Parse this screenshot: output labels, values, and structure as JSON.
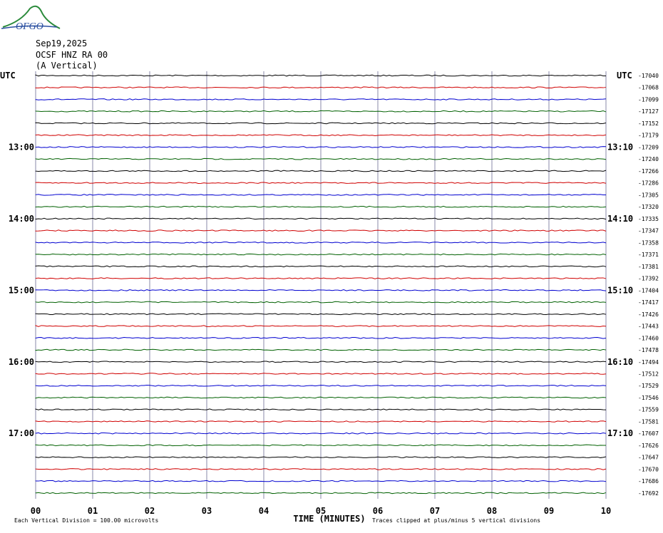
{
  "chart_data": {
    "type": "helicorder",
    "logo": "OFGO",
    "header": [
      "Sep19,2025",
      "OCSF HNZ RA 00",
      "(A Vertical)"
    ],
    "left_axis_label": "UTC",
    "right_axis_label": "UTC",
    "xlabel": "TIME (MINUTES)",
    "xlim": [
      0,
      10
    ],
    "xticks": [
      {
        "value": 0,
        "label": "00"
      },
      {
        "value": 1,
        "label": "01"
      },
      {
        "value": 2,
        "label": "02"
      },
      {
        "value": 3,
        "label": "03"
      },
      {
        "value": 4,
        "label": "04"
      },
      {
        "value": 5,
        "label": "05"
      },
      {
        "value": 6,
        "label": "06"
      },
      {
        "value": 7,
        "label": "07"
      },
      {
        "value": 8,
        "label": "08"
      },
      {
        "value": 9,
        "label": "09"
      },
      {
        "value": 10,
        "label": "10"
      }
    ],
    "colors": [
      "#000000",
      "#d00000",
      "#0000d0",
      "#006000"
    ],
    "left_time_labels": [
      null,
      null,
      null,
      null,
      null,
      null,
      "13:00",
      null,
      null,
      null,
      null,
      null,
      "14:00",
      null,
      null,
      null,
      null,
      null,
      "15:00",
      null,
      null,
      null,
      null,
      null,
      "16:00",
      null,
      null,
      null,
      null,
      null,
      "17:00",
      null,
      null,
      null,
      null,
      null
    ],
    "right_time_labels": [
      null,
      null,
      null,
      null,
      null,
      null,
      "13:10",
      null,
      null,
      null,
      null,
      null,
      "14:10",
      null,
      null,
      null,
      null,
      null,
      "15:10",
      null,
      null,
      null,
      null,
      null,
      "16:10",
      null,
      null,
      null,
      null,
      null,
      "17:10",
      null,
      null,
      null,
      null,
      null
    ],
    "trace_labels": [
      -17040,
      -17068,
      -17099,
      -17127,
      -17152,
      -17179,
      -17209,
      -17240,
      -17266,
      -17286,
      -17305,
      -17320,
      -17335,
      -17347,
      -17358,
      -17371,
      -17381,
      -17392,
      -17404,
      -17417,
      -17426,
      -17443,
      -17460,
      -17478,
      -17494,
      -17512,
      -17529,
      -17546,
      -17559,
      -17581,
      -17607,
      -17626,
      -17647,
      -17670,
      -17686,
      -17692
    ],
    "footnote_left": "Each Vertical Division =  100.00 microvolts",
    "footnote_right": "Traces clipped at plus/minus 5 vertical divisions"
  }
}
